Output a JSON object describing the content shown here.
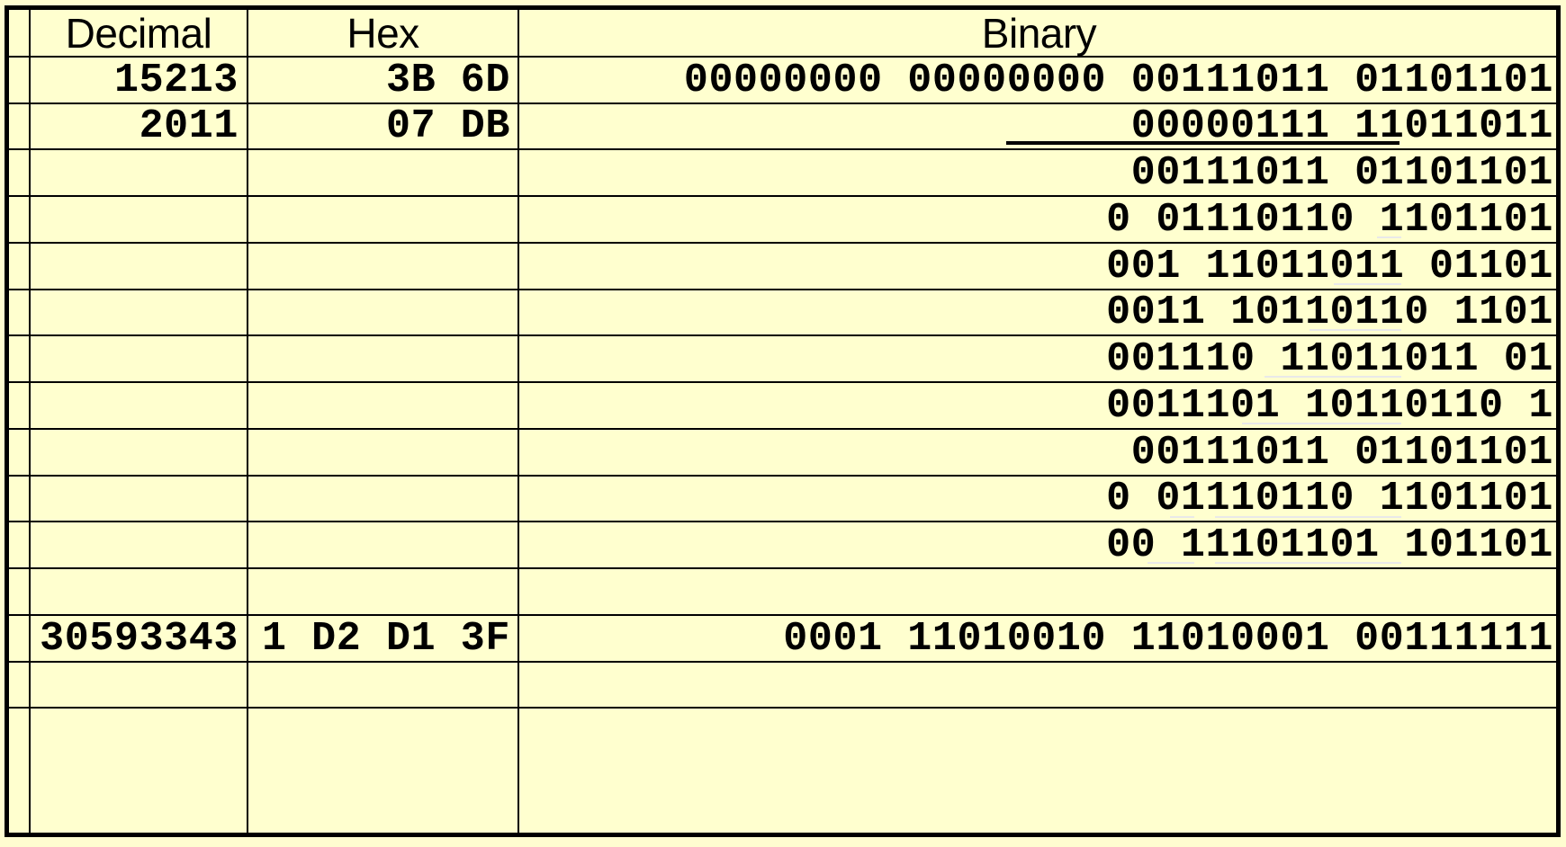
{
  "table": {
    "headers": {
      "decimal": "Decimal",
      "hex": "Hex",
      "binary": "Binary"
    },
    "rows": [
      {
        "decimal": "15213",
        "hex": "3B 6D",
        "binary": "00000000 00000000 00111011 01101101"
      },
      {
        "decimal": "2011",
        "hex": "07 DB",
        "binary": "00000111 11011011"
      },
      {
        "decimal": "",
        "hex": "",
        "binary": "00111011 01101101"
      },
      {
        "decimal": "",
        "hex": "",
        "binary": "0 01110110 1101101"
      },
      {
        "decimal": "",
        "hex": "",
        "binary": "001 11011011 01101"
      },
      {
        "decimal": "",
        "hex": "",
        "binary": "0011 10110110 1101"
      },
      {
        "decimal": "",
        "hex": "",
        "binary": "001110 11011011 01"
      },
      {
        "decimal": "",
        "hex": "",
        "binary": "0011101 10110110 1"
      },
      {
        "decimal": "",
        "hex": "",
        "binary": "00111011 01101101"
      },
      {
        "decimal": "",
        "hex": "",
        "binary": "0 01110110 1101101"
      },
      {
        "decimal": "",
        "hex": "",
        "binary": "00 11101101 101101"
      },
      {
        "decimal": "",
        "hex": "",
        "binary": ""
      },
      {
        "decimal": "30593343",
        "hex": "1 D2 D1 3F",
        "binary": "0001 11010010 11010001 00111111"
      },
      {
        "decimal": "",
        "hex": "",
        "binary": ""
      },
      {
        "decimal": "",
        "hex": "",
        "binary": ""
      }
    ]
  }
}
